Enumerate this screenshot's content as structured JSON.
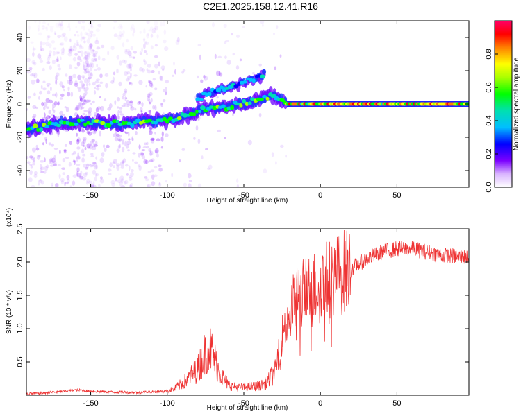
{
  "title": "C2E1.2025.158.12.41.R16",
  "chart_data": [
    {
      "type": "heatmap",
      "xlabel": "Height of straight line (km)",
      "ylabel": "Frequency (Hz)",
      "xlim": [
        -192,
        97
      ],
      "ylim": [
        -50,
        50
      ],
      "xticks": [
        -150,
        -100,
        -50,
        0,
        50
      ],
      "yticks": [
        -40,
        -20,
        0,
        20,
        40
      ],
      "xtick_labels": [
        "-150",
        "-100",
        "-50",
        "0",
        "50"
      ],
      "ytick_labels": [
        "-40",
        "-20",
        "0",
        "20",
        "40"
      ],
      "colorbar": {
        "label": "Normalized spectral amplitude",
        "range": [
          0,
          1
        ],
        "ticks": [
          0.0,
          0.2,
          0.4,
          0.6,
          0.8
        ],
        "tick_labels": [
          "0.0",
          "0.2",
          "0.4",
          "0.6",
          "0.8"
        ],
        "colormap": "rainbow (white-purple-blue-cyan-green-yellow-red-magenta)"
      },
      "ridge_main": {
        "x": [
          -192,
          -170,
          -150,
          -130,
          -110,
          -95,
          -85,
          -75,
          -65,
          -55,
          -45,
          -38,
          -33,
          -28,
          -25,
          -20,
          0,
          30,
          60,
          97
        ],
        "y": [
          -15,
          -11,
          -11,
          -12,
          -10,
          -9,
          -6,
          -3,
          -2,
          -1,
          1,
          3,
          5,
          4,
          2,
          0,
          0,
          0,
          0,
          0
        ]
      },
      "ridge_upper": {
        "x": [
          -80,
          -70,
          -60,
          -50,
          -42,
          -36
        ],
        "y": [
          4,
          7,
          10,
          13,
          16,
          18
        ]
      }
    },
    {
      "type": "line",
      "xlabel": "Height of straight line (km)",
      "ylabel": "SNR (10 * v/v)",
      "y_multiplier": "(x10⁴)",
      "xlim": [
        -192,
        97
      ],
      "ylim": [
        0,
        2.5
      ],
      "xticks": [
        -150,
        -100,
        -50,
        0,
        50
      ],
      "yticks": [
        0.5,
        1.0,
        1.5,
        2.0,
        2.5
      ],
      "xtick_labels": [
        "-150",
        "-100",
        "-50",
        "0",
        "50"
      ],
      "ytick_labels": [
        "0.5",
        "1.0",
        "1.5",
        "2.0",
        "2.5"
      ],
      "color": "#ee3333",
      "envelope": {
        "x": [
          -192,
          -170,
          -160,
          -150,
          -140,
          -120,
          -100,
          -95,
          -90,
          -85,
          -80,
          -76,
          -73,
          -70,
          -66,
          -60,
          -55,
          -50,
          -45,
          -40,
          -35,
          -30,
          -27,
          -25,
          -22,
          -18,
          -15,
          -10,
          -5,
          0,
          10,
          20,
          30,
          40,
          50,
          60,
          70,
          80,
          97
        ],
        "y": [
          0.02,
          0.05,
          0.08,
          0.06,
          0.05,
          0.04,
          0.06,
          0.1,
          0.18,
          0.28,
          0.4,
          0.6,
          0.75,
          0.6,
          0.35,
          0.15,
          0.12,
          0.12,
          0.13,
          0.14,
          0.18,
          0.35,
          0.65,
          0.9,
          1.15,
          1.35,
          1.5,
          1.55,
          1.6,
          1.7,
          1.8,
          1.9,
          2.05,
          2.15,
          2.2,
          2.2,
          2.15,
          2.1,
          2.07
        ]
      }
    }
  ]
}
